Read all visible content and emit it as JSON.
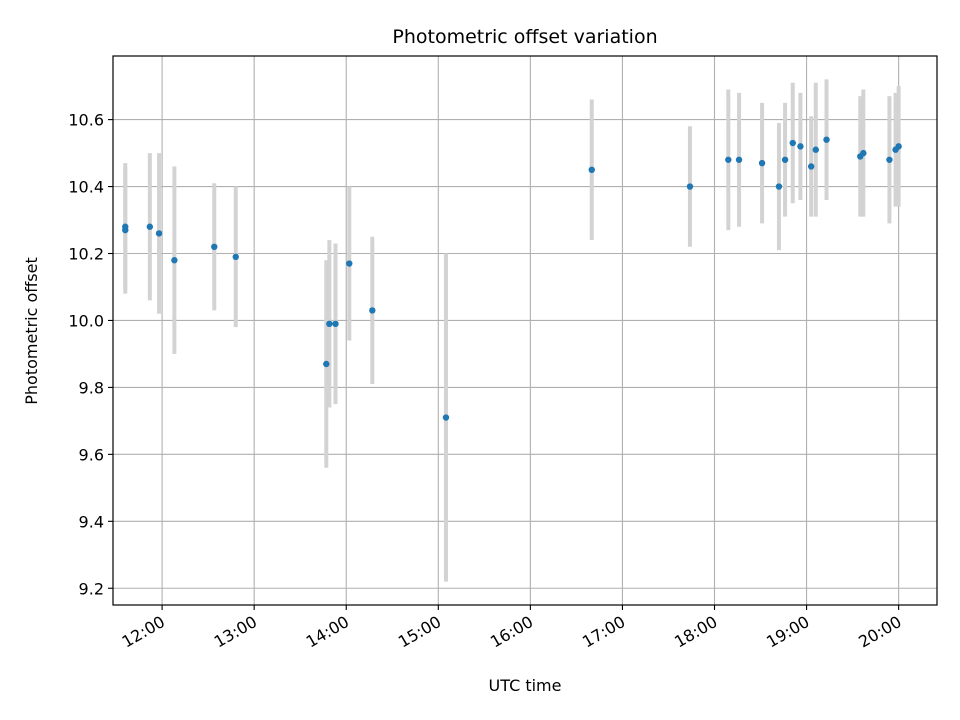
{
  "chart_data": {
    "type": "scatter",
    "title": "Photometric offset variation",
    "xlabel": "UTC time",
    "ylabel": "Photometric offset",
    "x_tick_labels": [
      "12:00",
      "13:00",
      "14:00",
      "15:00",
      "16:00",
      "17:00",
      "18:00",
      "19:00",
      "20:00"
    ],
    "y_tick_labels": [
      "9.2",
      "9.4",
      "9.6",
      "9.8",
      "10.0",
      "10.2",
      "10.4",
      "10.6"
    ],
    "xlim": [
      "11:28",
      "20:25"
    ],
    "ylim": [
      9.15,
      10.79
    ],
    "grid": true,
    "colors": {
      "points": "#1f77b4",
      "errorbars": "#d3d3d3",
      "grid": "#b0b0b0"
    },
    "series": [
      {
        "points": [
          {
            "x": "11:36",
            "y": 10.27,
            "err": 0.19
          },
          {
            "x": "11:36",
            "y": 10.28,
            "err": 0.19
          },
          {
            "x": "11:52",
            "y": 10.28,
            "err": 0.22
          },
          {
            "x": "11:58",
            "y": 10.26,
            "err": 0.24
          },
          {
            "x": "12:08",
            "y": 10.18,
            "err": 0.28
          },
          {
            "x": "12:34",
            "y": 10.22,
            "err": 0.19
          },
          {
            "x": "12:48",
            "y": 10.19,
            "err": 0.21
          },
          {
            "x": "13:47",
            "y": 9.87,
            "err": 0.31
          },
          {
            "x": "13:49",
            "y": 9.99,
            "err": 0.25
          },
          {
            "x": "13:53",
            "y": 9.99,
            "err": 0.24
          },
          {
            "x": "14:02",
            "y": 10.17,
            "err": 0.23
          },
          {
            "x": "14:17",
            "y": 10.03,
            "err": 0.22
          },
          {
            "x": "15:05",
            "y": 9.71,
            "err": 0.49
          },
          {
            "x": "16:40",
            "y": 10.45,
            "err": 0.21
          },
          {
            "x": "17:44",
            "y": 10.4,
            "err": 0.18
          },
          {
            "x": "18:09",
            "y": 10.48,
            "err": 0.21
          },
          {
            "x": "18:16",
            "y": 10.48,
            "err": 0.2
          },
          {
            "x": "18:31",
            "y": 10.47,
            "err": 0.18
          },
          {
            "x": "18:42",
            "y": 10.4,
            "err": 0.19
          },
          {
            "x": "18:46",
            "y": 10.48,
            "err": 0.17
          },
          {
            "x": "18:51",
            "y": 10.53,
            "err": 0.18
          },
          {
            "x": "18:56",
            "y": 10.52,
            "err": 0.16
          },
          {
            "x": "19:03",
            "y": 10.46,
            "err": 0.15
          },
          {
            "x": "19:06",
            "y": 10.51,
            "err": 0.2
          },
          {
            "x": "19:13",
            "y": 10.54,
            "err": 0.18
          },
          {
            "x": "19:35",
            "y": 10.49,
            "err": 0.18
          },
          {
            "x": "19:37",
            "y": 10.5,
            "err": 0.19
          },
          {
            "x": "19:54",
            "y": 10.48,
            "err": 0.19
          },
          {
            "x": "19:58",
            "y": 10.51,
            "err": 0.17
          },
          {
            "x": "20:00",
            "y": 10.52,
            "err": 0.18
          }
        ]
      }
    ]
  }
}
